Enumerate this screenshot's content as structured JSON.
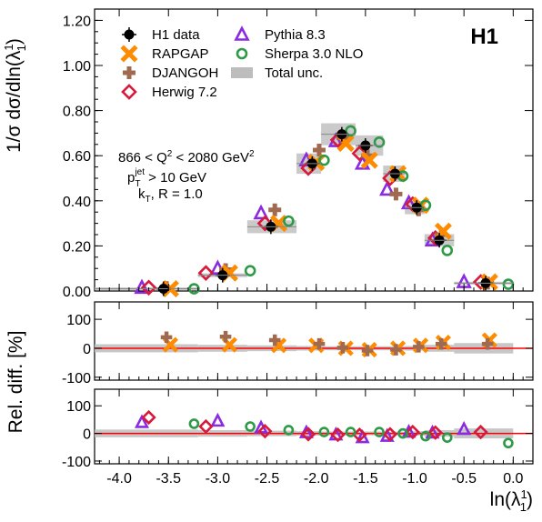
{
  "chart_data": {
    "type": "scatter",
    "experiment": "H1",
    "x_label": "ln(λ",
    "x_label_sup": "1",
    "x_label_sub": "1",
    "x_label_end": ")",
    "x_range": [
      -4.25,
      0.2
    ],
    "x_ticks": [
      "-4.0",
      "-3.5",
      "-3.0",
      "-2.5",
      "-2.0",
      "-1.5",
      "-1.0",
      "-0.5",
      "0.0"
    ],
    "x_tick_values": [
      -4.0,
      -3.5,
      -3.0,
      -2.5,
      -2.0,
      -1.5,
      -1.0,
      -0.5,
      0.0
    ],
    "y_label": "1/σ dσ/dln(λ",
    "y_label_sup": "1",
    "y_label_sub": "1",
    "y_label_end": ")",
    "y_range": [
      0,
      1.25
    ],
    "y_ticks": [
      "0.00",
      "0.20",
      "0.40",
      "0.60",
      "0.80",
      "1.00",
      "1.20"
    ],
    "y_tick_values": [
      0,
      0.2,
      0.4,
      0.6,
      0.8,
      1.0,
      1.2
    ],
    "ratio_label": "Rel. diff. [%]",
    "ratio_range": [
      -110,
      160
    ],
    "ratio_ticks": [
      "-100",
      "0",
      "100"
    ],
    "ratio_tick_values": [
      -100,
      0,
      100
    ],
    "kinematics": {
      "q2_lo": "866",
      "q2_hi": "2080",
      "q2_unit": "GeV",
      "pt_cut": "10 GeV",
      "algo": "k",
      "algo_sub": "T",
      "radius": "R = 1.0"
    },
    "legend": [
      {
        "key": "data",
        "label": "H1 data"
      },
      {
        "key": "rapgap",
        "label": "RAPGAP"
      },
      {
        "key": "djangoh",
        "label": "DJANGOH"
      },
      {
        "key": "herwig",
        "label": "Herwig 7.2"
      },
      {
        "key": "pythia",
        "label": "Pythia 8.3"
      },
      {
        "key": "sherpa",
        "label": "Sherpa 3.0 NLO"
      },
      {
        "key": "unc",
        "label": "Total unc."
      }
    ],
    "colors": {
      "data": "#000000",
      "rapgap": "#ff8c00",
      "djangoh": "#a06a50",
      "herwig": "#d7193c",
      "pythia": "#8a2be2",
      "sherpa": "#2e9a48",
      "unc": "#bdbdbd",
      "zero_line": "#ff0000"
    },
    "bins": [
      {
        "lo": -4.25,
        "hi": -3.2
      },
      {
        "lo": -3.2,
        "hi": -2.7
      },
      {
        "lo": -2.7,
        "hi": -2.2
      },
      {
        "lo": -2.2,
        "hi": -1.95
      },
      {
        "lo": -1.95,
        "hi": -1.6
      },
      {
        "lo": -1.6,
        "hi": -1.32
      },
      {
        "lo": -1.32,
        "hi": -1.1
      },
      {
        "lo": -1.1,
        "hi": -0.9
      },
      {
        "lo": -0.9,
        "hi": -0.6
      },
      {
        "lo": -0.6,
        "hi": 0.0
      }
    ],
    "series": [
      {
        "key": "data",
        "x": [
          -3.55,
          -2.95,
          -2.46,
          -2.04,
          -1.74,
          -1.5,
          -1.2,
          -0.98,
          -0.75,
          -0.28
        ],
        "y": [
          0.01,
          0.07,
          0.285,
          0.565,
          0.695,
          0.645,
          0.52,
          0.37,
          0.225,
          0.035
        ]
      },
      {
        "key": "rapgap",
        "x": [
          -3.48,
          -2.88,
          -2.38,
          -2.0,
          -1.7,
          -1.46,
          -1.17,
          -0.94,
          -0.71,
          -0.24
        ],
        "y": [
          0.01,
          0.08,
          0.3,
          0.57,
          0.655,
          0.58,
          0.52,
          0.38,
          0.265,
          0.04
        ],
        "ratio": [
          12,
          12,
          10,
          10,
          0,
          -5,
          0,
          10,
          20,
          28
        ]
      },
      {
        "key": "djangoh",
        "x": [
          -3.52,
          -2.92,
          -2.42,
          -1.97,
          -1.73,
          -1.48,
          -1.19,
          -0.96,
          -0.73,
          -0.26
        ],
        "y": [
          0.015,
          0.095,
          0.36,
          0.625,
          0.68,
          0.6,
          0.43,
          0.36,
          0.25,
          0.035
        ],
        "ratio": [
          38,
          40,
          28,
          15,
          2,
          -8,
          -5,
          5,
          15,
          15
        ]
      },
      {
        "key": "herwig",
        "x": [
          -3.7,
          -3.12,
          -2.52,
          -2.08,
          -1.78,
          -1.56,
          -1.25,
          -1.02,
          -0.79,
          -0.33
        ],
        "y": [
          0.015,
          0.08,
          0.3,
          0.545,
          0.67,
          0.61,
          0.5,
          0.385,
          0.235,
          0.04
        ],
        "ratio": [
          58,
          25,
          8,
          -3,
          -5,
          -5,
          -3,
          5,
          3,
          5
        ]
      },
      {
        "key": "pythia",
        "x": [
          -3.77,
          -3.0,
          -2.56,
          -2.1,
          -1.8,
          -1.53,
          -1.28,
          -1.06,
          -0.82,
          -0.5
        ],
        "y": [
          0.015,
          0.1,
          0.345,
          0.58,
          0.665,
          0.565,
          0.45,
          0.39,
          0.225,
          0.04
        ],
        "ratio": [
          40,
          45,
          20,
          3,
          -5,
          -15,
          -10,
          5,
          2,
          15
        ]
      },
      {
        "key": "sherpa",
        "x": [
          -3.24,
          -2.67,
          -2.28,
          -1.92,
          -1.65,
          -1.36,
          -1.12,
          -0.89,
          -0.67,
          -0.05
        ],
        "y": [
          0.01,
          0.09,
          0.31,
          0.58,
          0.71,
          0.66,
          0.51,
          0.38,
          0.18,
          0.03
        ],
        "ratio": [
          35,
          25,
          12,
          5,
          5,
          5,
          0,
          -10,
          -15,
          -35
        ]
      }
    ],
    "unc_ratio_half": [
      14,
      12,
      10,
      8,
      7,
      7,
      7,
      8,
      12,
      18
    ]
  }
}
